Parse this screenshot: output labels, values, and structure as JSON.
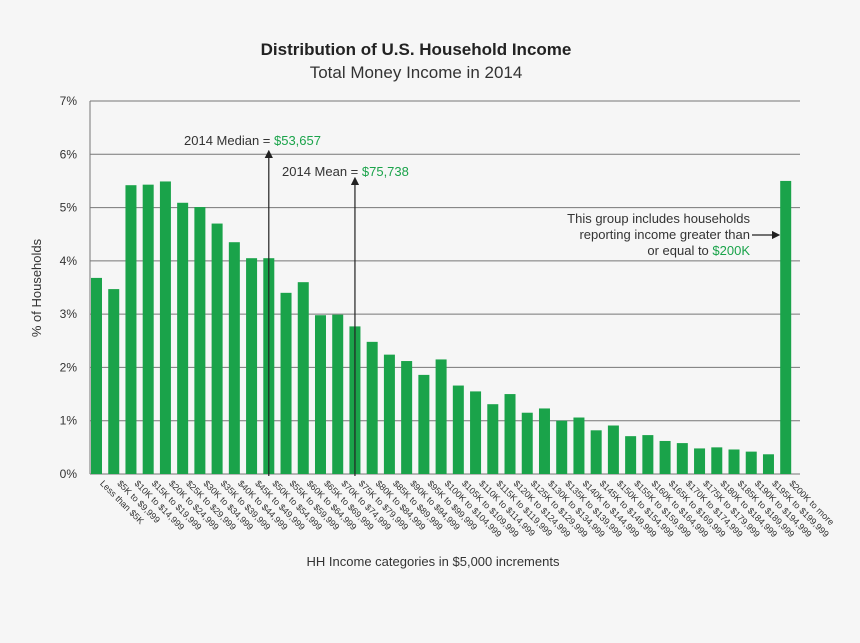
{
  "chart_data": {
    "type": "bar",
    "title": "Distribution of U.S. Household Income",
    "subtitle": "Total Money Income in 2014",
    "xlabel": "HH Income categories in $5,000 increments",
    "ylabel": "% of Households",
    "ylim": [
      0,
      7
    ],
    "yticks": [
      "0%",
      "1%",
      "2%",
      "3%",
      "4%",
      "5%",
      "6%",
      "7%"
    ],
    "grid": true,
    "bar_color": "#1aa34a",
    "categories": [
      "Less than $5K",
      "$5K to $9,999",
      "$10K to $14,999",
      "$15K to $19,999",
      "$20K to $24,999",
      "$25K to $29,999",
      "$30K to $34,999",
      "$35K to $39,999",
      "$40K to $44,999",
      "$45K to $49,999",
      "$50K to $54,999",
      "$55K to $59,999",
      "$60K to $64,999",
      "$65K to $69,999",
      "$70K to $74,999",
      "$75K to $79,999",
      "$80K to $84,999",
      "$85K to $89,999",
      "$90K to $94,999",
      "$95K to $99,999",
      "$100K to $104,999",
      "$105K to $109,999",
      "$110K to $114,999",
      "$115K to $119,999",
      "$120K to $124,999",
      "$125K to $129,999",
      "$130K to $134,999",
      "$135K to $139,999",
      "$140K to $144,999",
      "$145K to $149,999",
      "$150K to $154,999",
      "$155K to $159,999",
      "$160K to $164,999",
      "$165K to $169,999",
      "$170K to $174,999",
      "$175K to $179,999",
      "$180K to $184,999",
      "$185K to $189,999",
      "$190K to $194,999",
      "$195K to $199,999",
      "$200K to more"
    ],
    "values": [
      3.68,
      3.47,
      5.42,
      5.43,
      5.49,
      5.09,
      5.01,
      4.7,
      4.35,
      4.05,
      4.05,
      3.4,
      3.6,
      2.98,
      2.99,
      2.77,
      2.48,
      2.24,
      2.12,
      1.86,
      2.15,
      1.66,
      1.55,
      1.31,
      1.5,
      1.15,
      1.23,
      1.0,
      1.06,
      0.82,
      0.91,
      0.71,
      0.73,
      0.62,
      0.58,
      0.48,
      0.5,
      0.46,
      0.42,
      0.37,
      5.5
    ],
    "annotations": {
      "median": {
        "label": "2014 Median = ",
        "value": "$53,657",
        "category_index": 10
      },
      "mean": {
        "label": "2014 Mean = ",
        "value": "$75,738",
        "category_index": 15
      },
      "note_line1": "This group includes households",
      "note_line2": "reporting income greater than",
      "note_line3": "or equal to ",
      "note_value": "$200K"
    }
  }
}
